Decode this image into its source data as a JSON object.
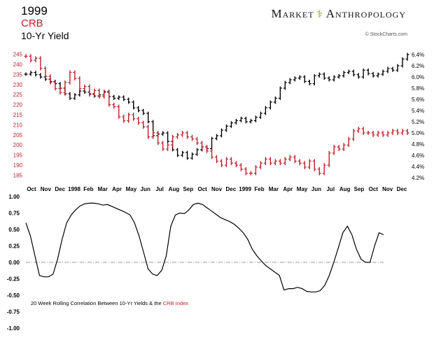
{
  "header": {
    "year": "1999",
    "series1_label": "CRB",
    "series2_label": "10-Yr Yield",
    "brand_left": "Market",
    "brand_symbol": "⚕",
    "brand_right": "Anthropology",
    "credit": "© StockCharts.com"
  },
  "colors": {
    "crb": "#c21d2a",
    "yield": "#000000",
    "correlation": "#000000",
    "zero_line": "#999999"
  },
  "chart_data": [
    {
      "type": "line",
      "title": "CRB vs 10-Yr Yield",
      "x_labels": [
        "Oct",
        "Nov",
        "Dec",
        "1998",
        "Feb",
        "Mar",
        "Apr",
        "May",
        "Jun",
        "Jul",
        "Aug",
        "Sep",
        "Oct",
        "Nov",
        "Dec",
        "1999",
        "Feb",
        "Mar",
        "Apr",
        "May",
        "Jun",
        "Jul",
        "Aug",
        "Sep",
        "Oct",
        "Nov",
        "Dec"
      ],
      "left_axis": {
        "label": "CRB",
        "ticks": [
          185,
          190,
          195,
          200,
          205,
          210,
          215,
          220,
          225,
          230,
          235,
          240,
          245
        ],
        "ylim": [
          181,
          249
        ]
      },
      "right_axis": {
        "label": "10-Yr Yield",
        "ticks": [
          "4.2%",
          "4.4%",
          "4.6%",
          "4.8%",
          "5.0%",
          "5.2%",
          "5.4%",
          "5.6%",
          "5.8%",
          "6.0%",
          "6.2%",
          "6.4%"
        ],
        "tick_values": [
          4.2,
          4.4,
          4.6,
          4.8,
          5.0,
          5.2,
          5.4,
          5.6,
          5.8,
          6.0,
          6.2,
          6.4
        ],
        "ylim": [
          4.1,
          6.55
        ]
      },
      "series": [
        {
          "name": "CRB",
          "axis": "left",
          "values": [
            244,
            242,
            243,
            238,
            234,
            231,
            228,
            226,
            231,
            236,
            233,
            228,
            229,
            225,
            227,
            224,
            226,
            220,
            219,
            214,
            212,
            215,
            213,
            211,
            209,
            204,
            206,
            201,
            198,
            200,
            204,
            205,
            206,
            204,
            203,
            201,
            199,
            197,
            194,
            192,
            190,
            193,
            191,
            190,
            188,
            186,
            186,
            189,
            191,
            193,
            191,
            192,
            191,
            193,
            194,
            192,
            191,
            189,
            192,
            188,
            186,
            190,
            196,
            199,
            198,
            200,
            203,
            207,
            208,
            206,
            206,
            205,
            206,
            205,
            206,
            207,
            206,
            207,
            206
          ]
        },
        {
          "name": "10-Yr Yield",
          "axis": "right",
          "values": [
            6.05,
            6.08,
            6.04,
            6.0,
            5.96,
            5.92,
            5.88,
            5.8,
            5.7,
            5.62,
            5.68,
            5.75,
            5.73,
            5.7,
            5.66,
            5.68,
            5.74,
            5.65,
            5.62,
            5.64,
            5.6,
            5.55,
            5.45,
            5.4,
            5.35,
            5.2,
            4.95,
            4.98,
            5.0,
            4.85,
            4.7,
            4.6,
            4.65,
            4.55,
            4.62,
            4.7,
            4.75,
            4.72,
            4.9,
            4.95,
            5.05,
            5.12,
            5.18,
            5.22,
            5.26,
            5.2,
            5.22,
            5.28,
            5.35,
            5.45,
            5.55,
            5.62,
            5.8,
            5.9,
            5.95,
            5.98,
            6.0,
            5.92,
            5.88,
            6.02,
            6.05,
            5.98,
            5.95,
            6.0,
            6.02,
            6.08,
            6.1,
            6.04,
            6.0,
            6.12,
            6.06,
            6.02,
            6.05,
            6.1,
            6.15,
            6.12,
            6.2,
            6.32,
            6.4
          ]
        }
      ]
    },
    {
      "type": "line",
      "title": "20 Week Rolling Correlation Between 10-Yr Yields & the CRB Index",
      "annotation": {
        "prefix": "20 Week Rolling Correlation Between 10-Yr Yields & the ",
        "highlight": "CRB Index"
      },
      "ylabel": "",
      "y_ticks": [
        "1.00",
        "0.75",
        "0.50",
        "0.25",
        "0.00",
        "-0.25",
        "-0.50",
        "-0.75",
        "-1.00"
      ],
      "y_tick_values": [
        1.0,
        0.75,
        0.5,
        0.25,
        0.0,
        -0.25,
        -0.5,
        -0.75,
        -1.0
      ],
      "ylim": [
        -1.0,
        1.0
      ],
      "series": [
        {
          "name": "Correlation",
          "values": [
            0.6,
            0.4,
            0.1,
            -0.2,
            -0.22,
            -0.22,
            -0.18,
            0.05,
            0.35,
            0.6,
            0.72,
            0.8,
            0.86,
            0.89,
            0.9,
            0.9,
            0.89,
            0.87,
            0.88,
            0.85,
            0.82,
            0.79,
            0.76,
            0.72,
            0.6,
            0.4,
            0.15,
            -0.1,
            -0.18,
            -0.2,
            -0.12,
            0.1,
            0.55,
            0.72,
            0.75,
            0.74,
            0.8,
            0.88,
            0.9,
            0.88,
            0.83,
            0.78,
            0.73,
            0.68,
            0.65,
            0.62,
            0.58,
            0.52,
            0.45,
            0.35,
            0.2,
            0.1,
            0.02,
            -0.05,
            -0.1,
            -0.15,
            -0.2,
            -0.42,
            -0.4,
            -0.4,
            -0.38,
            -0.4,
            -0.44,
            -0.45,
            -0.45,
            -0.43,
            -0.35,
            -0.2,
            0.0,
            0.22,
            0.45,
            0.55,
            0.42,
            0.2,
            0.05,
            0.0,
            0.0,
            0.25,
            0.45,
            0.42
          ]
        }
      ]
    }
  ]
}
